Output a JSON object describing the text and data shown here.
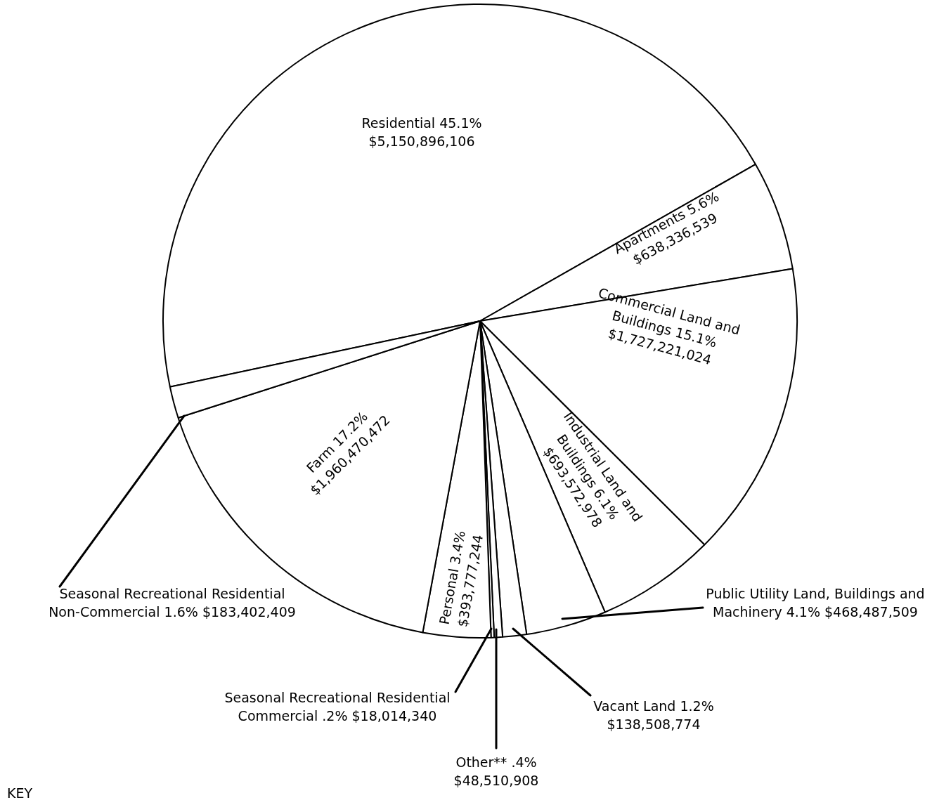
{
  "chart_data": {
    "type": "pie",
    "categories": [
      "Residential",
      "Apartments",
      "Commercial Land and Buildings",
      "Industrial Land and Buildings",
      "Public Utility Land, Buildings and Machinery",
      "Vacant Land",
      "Other**",
      "Seasonal Recreational Residential Commercial",
      "Personal",
      "Farm",
      "Seasonal Recreational Residential Non-Commercial"
    ],
    "values": [
      5150896106,
      638336539,
      1727221024,
      693572978,
      468487509,
      138508774,
      48510908,
      18014340,
      393777244,
      1960470472,
      183402409
    ],
    "value_labels": [
      "45.1% $5,150,896,106",
      "5.6% $638,336,539",
      "15.1% $1,727,221,024",
      "6.1% $693,572,978",
      "4.1% $468,487,509",
      "1.2% $138,508,774",
      ".4% $48,510,908",
      ".2% $18,014,340",
      "3.4% $393,777,244",
      "17.2% $1,960,470,472",
      "1.6% $183,402,409"
    ],
    "colors": [
      "#ffffff",
      "#ffffff",
      "#ffffff",
      "#ffffff",
      "#ffffff",
      "#ffffff",
      "#ffffff",
      "#ffffff",
      "#ffffff",
      "#ffffff",
      "#ffffff"
    ],
    "legend": false,
    "annotations": [
      "KEY"
    ]
  }
}
